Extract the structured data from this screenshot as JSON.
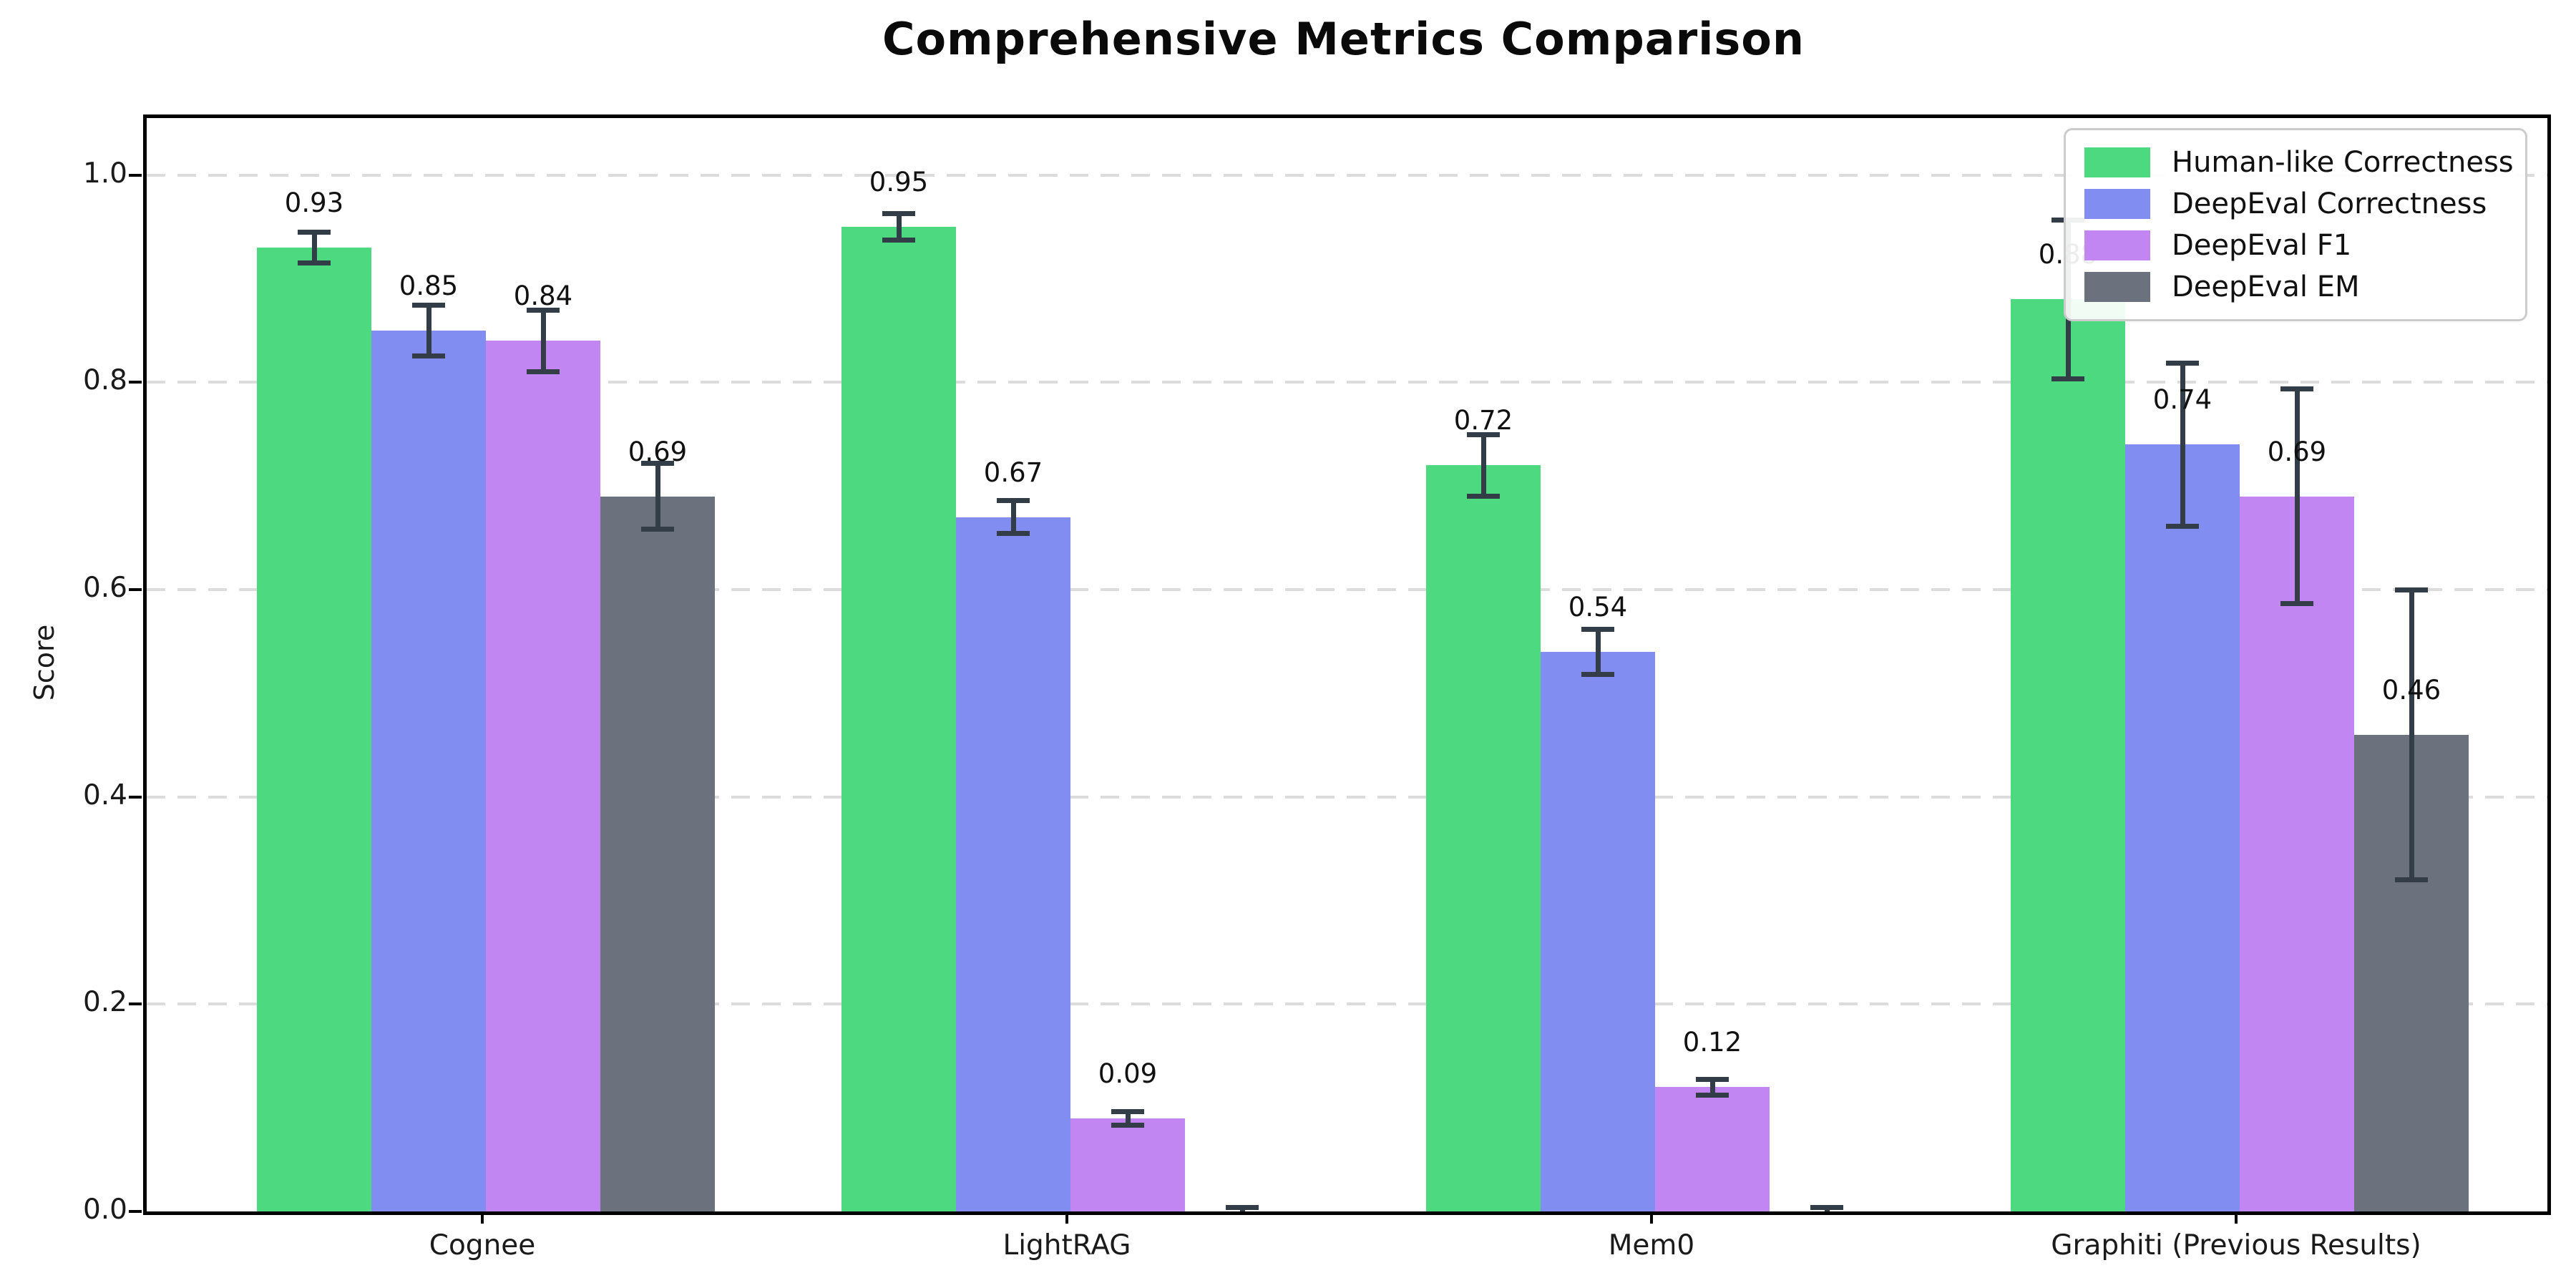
{
  "figure": {
    "title": "Comprehensive Metrics Comparison"
  },
  "axes": {
    "ylabel": "Score",
    "yticks": [
      "0.0",
      "0.2",
      "0.4",
      "0.6",
      "0.8",
      "1.0"
    ],
    "ytick_values": [
      0.0,
      0.2,
      0.4,
      0.6,
      0.8,
      1.0
    ],
    "ylim": [
      0,
      1.055
    ],
    "categories": [
      "Cognee",
      "LightRAG",
      "Mem0",
      "Graphiti (Previous Results)"
    ]
  },
  "colors": {
    "error_bar": "#333d47",
    "grid": "#dcdcdc",
    "spine": "#000000",
    "background": "#ffffff"
  },
  "chart_data": {
    "type": "bar",
    "title": "Comprehensive Metrics Comparison",
    "xlabel": "",
    "ylabel": "Score",
    "categories": [
      "Cognee",
      "LightRAG",
      "Mem0",
      "Graphiti (Previous Results)"
    ],
    "ylim": [
      0,
      1.055
    ],
    "grid": "horizontal-dashed",
    "legend_position": "upper right",
    "error_bars": true,
    "series": [
      {
        "name": "Human-like Correctness",
        "color": "#4cd97f",
        "values": [
          0.93,
          0.95,
          0.72,
          0.88
        ],
        "errors": [
          0.015,
          0.013,
          0.03,
          0.077
        ],
        "labels": [
          "0.93",
          "0.95",
          "0.72",
          "0.88"
        ]
      },
      {
        "name": "DeepEval Correctness",
        "color": "#818df0",
        "values": [
          0.85,
          0.67,
          0.54,
          0.74
        ],
        "errors": [
          0.025,
          0.016,
          0.022,
          0.079
        ],
        "labels": [
          "0.85",
          "0.67",
          "0.54",
          "0.74"
        ]
      },
      {
        "name": "DeepEval F1",
        "color": "#c186f2",
        "values": [
          0.84,
          0.09,
          0.12,
          0.69
        ],
        "errors": [
          0.03,
          0.007,
          0.008,
          0.104
        ],
        "labels": [
          "0.84",
          "0.09",
          "0.12",
          "0.69"
        ]
      },
      {
        "name": "DeepEval EM",
        "color": "#6b717d",
        "values": [
          0.69,
          0.0,
          0.0,
          0.46
        ],
        "errors": [
          0.032,
          0.004,
          0.004,
          0.14
        ],
        "labels": [
          "0.69",
          "",
          "",
          "0.46"
        ]
      }
    ]
  }
}
